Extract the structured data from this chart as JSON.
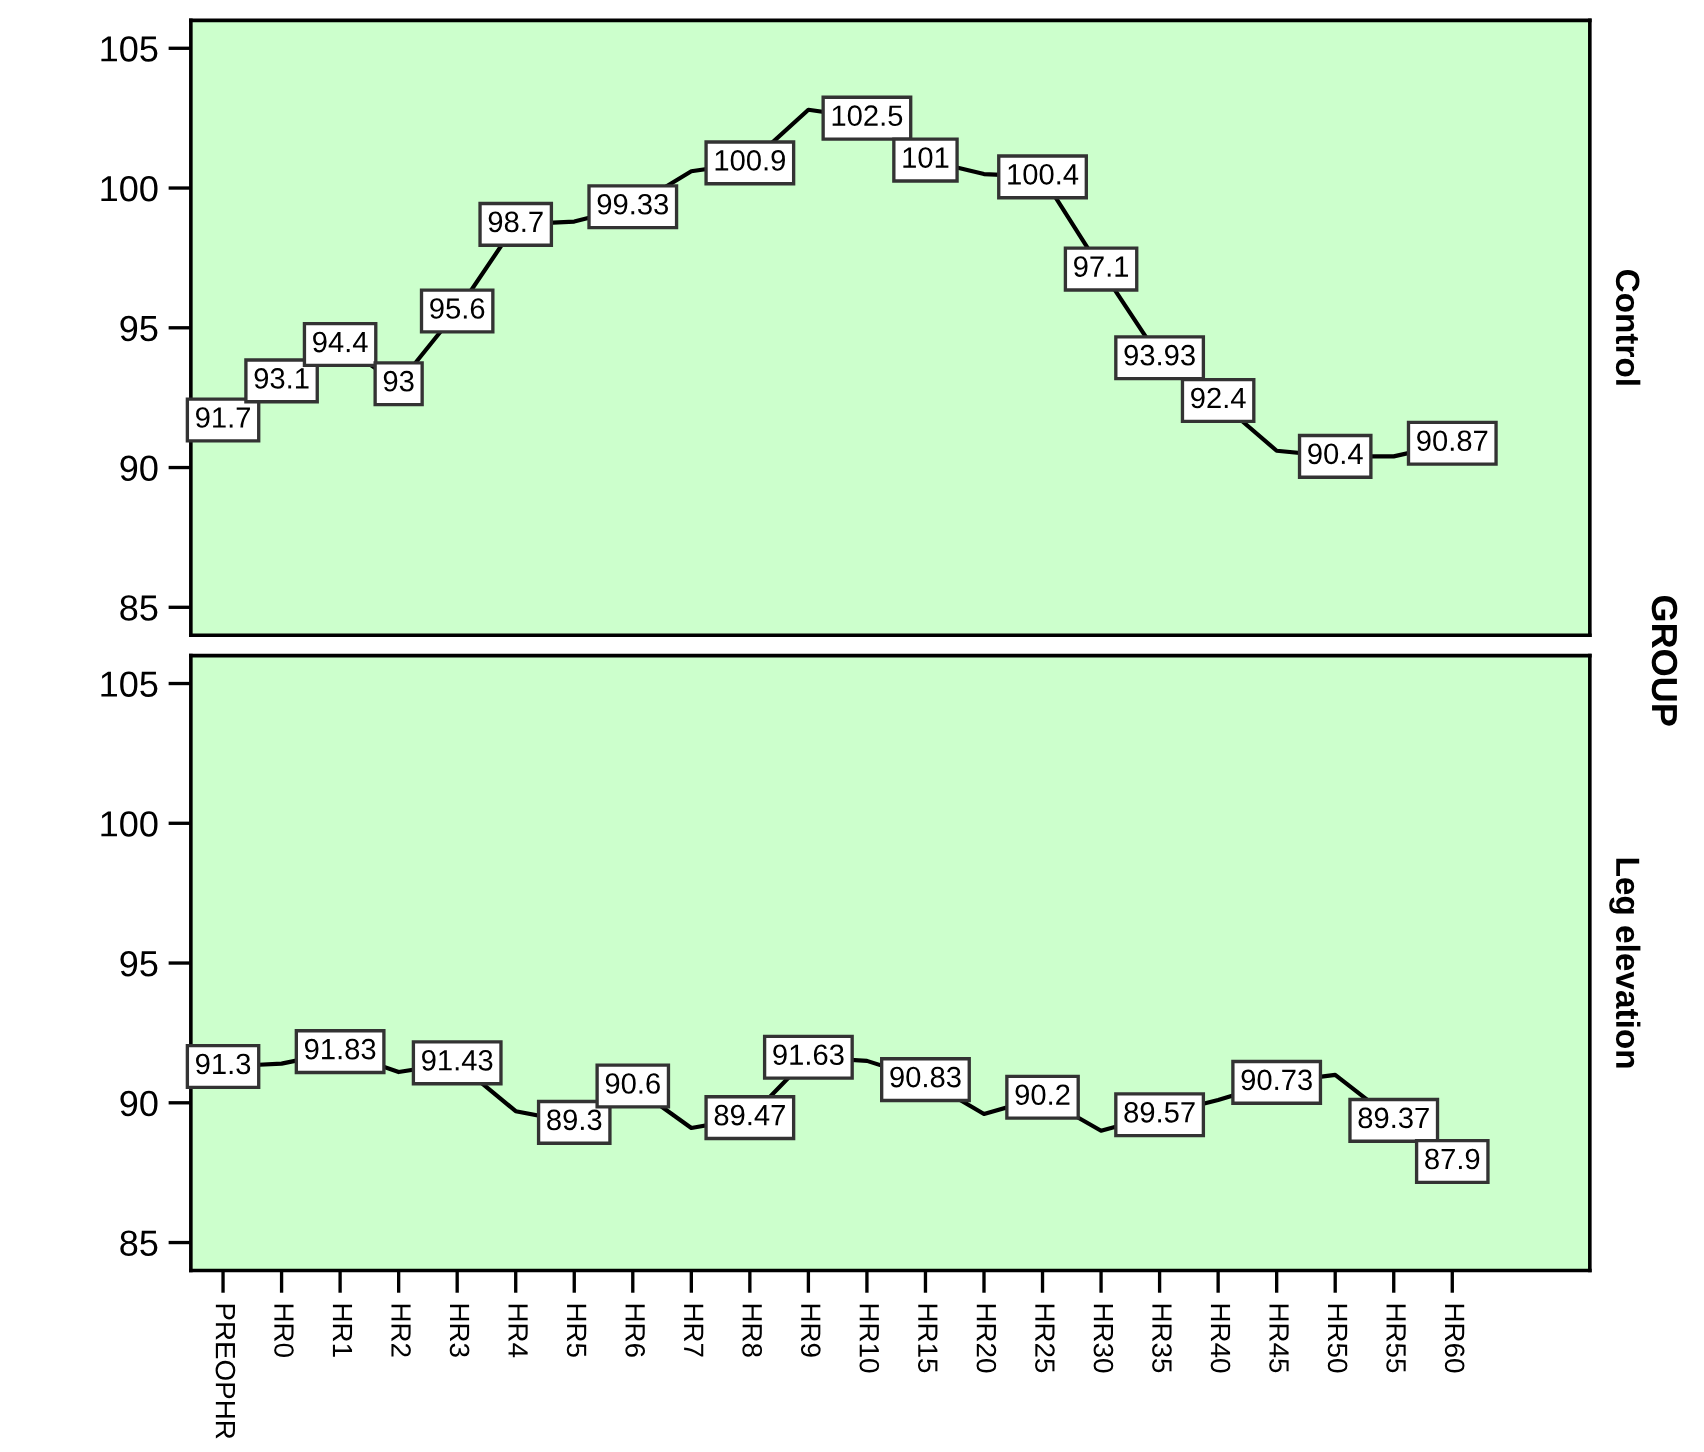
{
  "chart_data": [
    {
      "type": "line",
      "y2label": "Control",
      "annotations": [
        "GROUP"
      ],
      "categories": [
        null,
        null,
        null,
        null,
        null,
        null,
        null,
        null,
        null,
        null,
        null,
        null,
        null,
        null,
        null,
        null,
        null,
        null,
        null,
        null,
        null,
        null
      ],
      "series": [
        {
          "color": "#000000",
          "values": [
            91.7,
            93.1,
            94.4,
            93,
            95.6,
            98.7,
            98.8,
            99.33,
            100.6,
            100.9,
            102.8,
            102.5,
            101,
            100.5,
            100.4,
            97.1,
            93.93,
            92.4,
            90.6,
            90.4,
            90.4,
            90.87
          ],
          "value_labels": [
            "91.7",
            "93.1",
            "94.4",
            "93",
            "95.6",
            "98.7",
            null,
            "99.33",
            null,
            "100.9",
            null,
            "102.5",
            "101",
            null,
            "100.4",
            "97.1",
            "93.93",
            "92.4",
            null,
            "90.4",
            null,
            "90.87"
          ]
        }
      ],
      "ylim": [
        84,
        106
      ],
      "yticks": [
        85,
        90,
        95,
        100,
        105
      ],
      "grid": false,
      "line_style": "solid",
      "tick_labels": "y"
    },
    {
      "type": "line",
      "y2label": "Leg elevation",
      "categories": [
        "PREOPHR",
        "HR0",
        "HR1",
        "HR2",
        "HR3",
        "HR4",
        "HR5",
        "HR6",
        "HR7",
        "HR8",
        "HR9",
        "HR10",
        "HR15",
        "HR20",
        "HR25",
        "HR30",
        "HR35",
        "HR40",
        "HR45",
        "HR50",
        "HR55",
        "HR60"
      ],
      "series": [
        {
          "color": "#000000",
          "values": [
            91.3,
            91.4,
            91.83,
            91.1,
            91.43,
            89.7,
            89.3,
            90.6,
            89.1,
            89.47,
            91.63,
            91.5,
            90.83,
            89.6,
            90.2,
            89.0,
            89.57,
            90.1,
            90.73,
            91.0,
            89.37,
            87.9
          ],
          "value_labels": [
            "91.3",
            null,
            "91.83",
            null,
            "91.43",
            null,
            "89.3",
            "90.6",
            null,
            "89.47",
            "91.63",
            null,
            "90.83",
            null,
            "90.2",
            null,
            "89.57",
            null,
            "90.73",
            null,
            "89.37",
            "87.9"
          ]
        }
      ],
      "ylim": [
        84,
        106
      ],
      "yticks": [
        85,
        90,
        95,
        100,
        105
      ],
      "grid": false,
      "line_style": "solid"
    }
  ]
}
